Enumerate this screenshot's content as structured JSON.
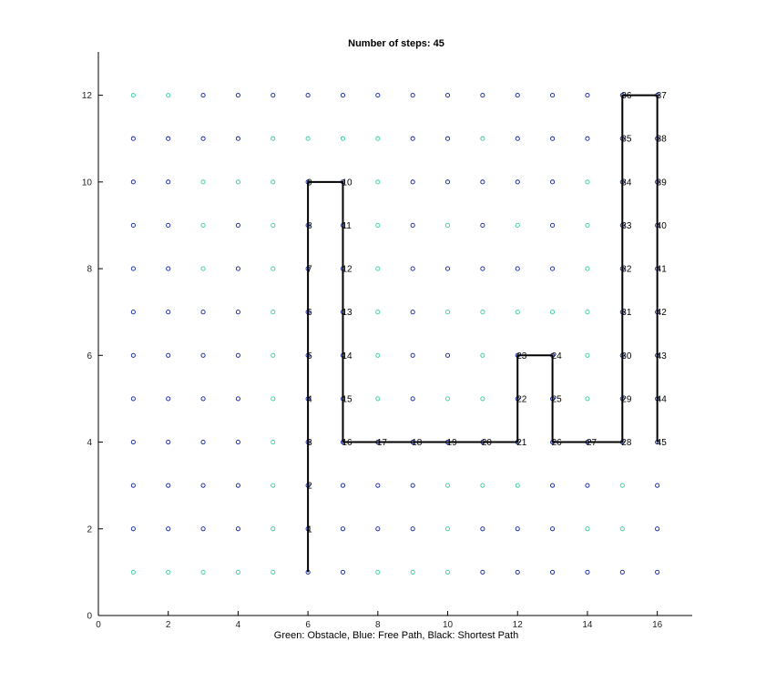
{
  "chart_data": {
    "type": "scatter",
    "title": "Number of steps: 45",
    "xlabel": "Green: Obstacle, Blue: Free Path, Black: Shortest Path",
    "ylabel": "",
    "xlim": [
      0,
      17
    ],
    "ylim": [
      0,
      13
    ],
    "xticks": [
      0,
      2,
      4,
      6,
      8,
      10,
      12,
      14,
      16
    ],
    "yticks": [
      0,
      2,
      4,
      6,
      8,
      10,
      12
    ],
    "grid": false,
    "grid_cols": 16,
    "grid_rows": 12,
    "colors": {
      "obstacle": "#33cc99",
      "free": "#0a1e9c",
      "path": "#000000",
      "axis": "#000000"
    },
    "obstacles": [
      [
        1,
        12
      ],
      [
        2,
        12
      ],
      [
        1,
        1
      ],
      [
        2,
        1
      ],
      [
        3,
        1
      ],
      [
        4,
        1
      ],
      [
        5,
        1
      ],
      [
        8,
        1
      ],
      [
        9,
        1
      ],
      [
        10,
        1
      ],
      [
        5,
        11
      ],
      [
        6,
        11
      ],
      [
        7,
        11
      ],
      [
        8,
        11
      ],
      [
        11,
        11
      ],
      [
        3,
        10
      ],
      [
        4,
        10
      ],
      [
        5,
        10
      ],
      [
        8,
        10
      ],
      [
        14,
        10
      ],
      [
        3,
        9
      ],
      [
        5,
        9
      ],
      [
        8,
        9
      ],
      [
        10,
        9
      ],
      [
        12,
        9
      ],
      [
        14,
        9
      ],
      [
        3,
        8
      ],
      [
        5,
        8
      ],
      [
        8,
        8
      ],
      [
        14,
        8
      ],
      [
        5,
        7
      ],
      [
        8,
        7
      ],
      [
        10,
        7
      ],
      [
        11,
        7
      ],
      [
        12,
        7
      ],
      [
        13,
        7
      ],
      [
        14,
        7
      ],
      [
        5,
        6
      ],
      [
        8,
        6
      ],
      [
        11,
        6
      ],
      [
        14,
        6
      ],
      [
        5,
        5
      ],
      [
        8,
        5
      ],
      [
        10,
        5
      ],
      [
        11,
        5
      ],
      [
        14,
        5
      ],
      [
        5,
        4
      ],
      [
        5,
        3
      ],
      [
        10,
        3
      ],
      [
        11,
        3
      ],
      [
        12,
        3
      ],
      [
        15,
        3
      ],
      [
        5,
        2
      ],
      [
        10,
        2
      ],
      [
        14,
        2
      ],
      [
        15,
        2
      ]
    ],
    "path": [
      [
        6,
        1
      ],
      [
        6,
        2
      ],
      [
        6,
        3
      ],
      [
        6,
        4
      ],
      [
        6,
        5
      ],
      [
        6,
        6
      ],
      [
        6,
        7
      ],
      [
        6,
        8
      ],
      [
        6,
        9
      ],
      [
        6,
        10
      ],
      [
        7,
        10
      ],
      [
        7,
        9
      ],
      [
        7,
        8
      ],
      [
        7,
        7
      ],
      [
        7,
        6
      ],
      [
        7,
        5
      ],
      [
        7,
        4
      ],
      [
        8,
        4
      ],
      [
        9,
        4
      ],
      [
        10,
        4
      ],
      [
        11,
        4
      ],
      [
        12,
        4
      ],
      [
        12,
        5
      ],
      [
        12,
        6
      ],
      [
        13,
        6
      ],
      [
        13,
        5
      ],
      [
        13,
        4
      ],
      [
        14,
        4
      ],
      [
        15,
        4
      ],
      [
        15,
        5
      ],
      [
        15,
        6
      ],
      [
        15,
        7
      ],
      [
        15,
        8
      ],
      [
        15,
        9
      ],
      [
        15,
        10
      ],
      [
        15,
        11
      ],
      [
        15,
        12
      ],
      [
        16,
        12
      ],
      [
        16,
        11
      ],
      [
        16,
        10
      ],
      [
        16,
        9
      ],
      [
        16,
        8
      ],
      [
        16,
        7
      ],
      [
        16,
        6
      ],
      [
        16,
        5
      ],
      [
        16,
        4
      ]
    ],
    "step_labels": [
      "",
      "1",
      "2",
      "3",
      "4",
      "5",
      "6",
      "7",
      "8",
      "9",
      "10",
      "11",
      "12",
      "13",
      "14",
      "15",
      "16",
      "17",
      "18",
      "19",
      "20",
      "21",
      "22",
      "23",
      "24",
      "25",
      "26",
      "27",
      "28",
      "29",
      "30",
      "31",
      "32",
      "33",
      "34",
      "35",
      "36",
      "37",
      "38",
      "39",
      "40",
      "41",
      "42",
      "43",
      "44",
      "45"
    ]
  }
}
